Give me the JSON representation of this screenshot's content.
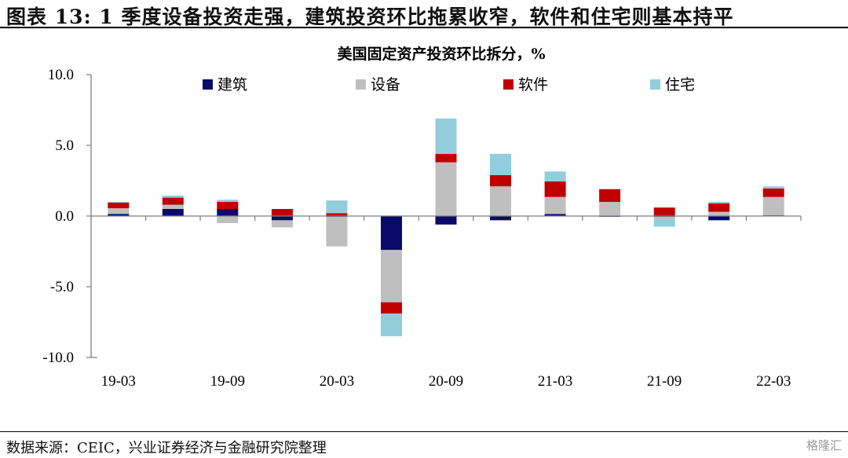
{
  "figure": {
    "title": "图表 13: 1 季度设备投资走强，建筑投资环比拖累收窄，软件和住宅则基本持平",
    "source": "数据来源：CEIC，兴业证券经济与金融研究院整理",
    "watermark": "格隆汇"
  },
  "chart_data": {
    "type": "bar",
    "stacked": true,
    "title": "美国固定资产投资环比拆分，%",
    "xlabel": "",
    "ylabel": "",
    "ylim": [
      -10,
      10
    ],
    "yticks": [
      10,
      5,
      0,
      -5,
      -10
    ],
    "ytick_labels": [
      "10.0",
      "5.0",
      "0.0",
      "-5.0",
      "-10.0"
    ],
    "categories": [
      "19-03",
      "19-06",
      "19-09",
      "19-12",
      "20-03",
      "20-06",
      "20-09",
      "20-12",
      "21-03",
      "21-06",
      "21-09",
      "21-12",
      "22-03"
    ],
    "xtick_labels": [
      "19-03",
      "",
      "19-09",
      "",
      "20-03",
      "",
      "20-09",
      "",
      "21-03",
      "",
      "21-09",
      "",
      "22-03"
    ],
    "legend_position": "top",
    "grid": false,
    "series": [
      {
        "name": "建筑",
        "color": "#0a0a6b",
        "values": [
          0.15,
          0.5,
          0.5,
          -0.3,
          -0.05,
          -2.4,
          -0.6,
          -0.3,
          0.15,
          -0.05,
          -0.05,
          -0.3,
          0.05
        ]
      },
      {
        "name": "设备",
        "color": "#bfbfbf",
        "values": [
          0.4,
          0.3,
          -0.5,
          -0.5,
          -2.1,
          -3.7,
          3.8,
          2.1,
          1.2,
          1.0,
          -0.2,
          0.3,
          1.3
        ]
      },
      {
        "name": "软件",
        "color": "#c00000",
        "values": [
          0.4,
          0.5,
          0.5,
          0.5,
          0.2,
          -0.8,
          0.6,
          0.8,
          1.1,
          0.9,
          0.6,
          0.6,
          0.6
        ]
      },
      {
        "name": "住宅",
        "color": "#92cddc",
        "values": [
          0.05,
          0.15,
          0.15,
          0.0,
          0.9,
          -1.6,
          2.5,
          1.5,
          0.7,
          0.0,
          -0.5,
          0.1,
          0.15
        ]
      }
    ]
  }
}
